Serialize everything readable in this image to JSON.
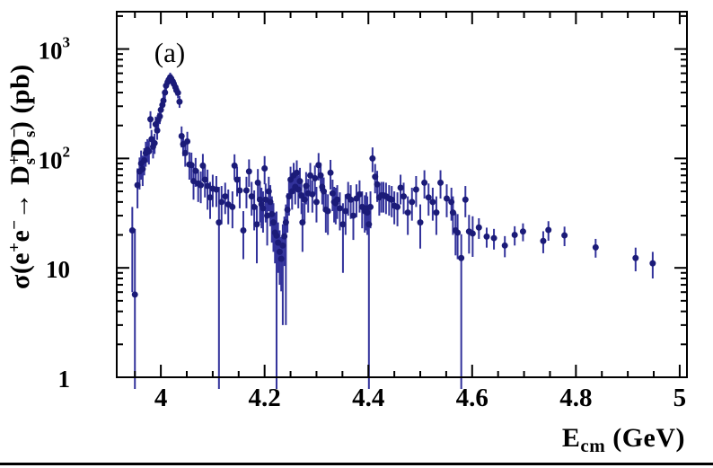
{
  "page": {
    "background": "#ffffff"
  },
  "chart_data": {
    "type": "scatter",
    "title": "",
    "panel_label": "(a)",
    "legend": null,
    "grid": false,
    "x_axis": {
      "title_parts": [
        {
          "t": "E",
          "s": "n"
        },
        {
          "t": "cm",
          "s": "sub"
        },
        {
          "t": " (GeV)",
          "s": "n"
        }
      ],
      "min": 3.915,
      "max": 5.014,
      "scale": "linear",
      "majors": [
        {
          "v": 4.0,
          "label": "4"
        },
        {
          "v": 4.2,
          "label": "4.2"
        },
        {
          "v": 4.4,
          "label": "4.4"
        },
        {
          "v": 4.6,
          "label": "4.6"
        },
        {
          "v": 4.8,
          "label": "4.8"
        },
        {
          "v": 5.0,
          "label": "5"
        }
      ],
      "minor_step": 0.05
    },
    "y_axis": {
      "title_parts": [
        {
          "t": "σ(e",
          "s": "n"
        },
        {
          "t": "+",
          "s": "sup"
        },
        {
          "t": "e",
          "s": "n"
        },
        {
          "t": "−",
          "s": "sup"
        },
        {
          "t": "→ ",
          "s": "n"
        },
        {
          "t": "D",
          "s": "n"
        },
        {
          "top": "+",
          "bottom": "s",
          "s": "stack"
        },
        {
          "t": "D",
          "s": "n"
        },
        {
          "top": "−",
          "bottom": "s",
          "s": "stack"
        },
        {
          "t": ") (pb)",
          "s": "n"
        }
      ],
      "min": 1,
      "max": 2194,
      "scale": "log",
      "majors": [
        {
          "v": 1,
          "base": "1",
          "exp": ""
        },
        {
          "v": 10,
          "base": "10",
          "exp": ""
        },
        {
          "v": 100,
          "base": "10",
          "exp": "2"
        },
        {
          "v": 1000,
          "base": "10",
          "exp": "3"
        }
      ]
    },
    "colors": {
      "marker": "#1b1b78",
      "error_bar": "#32329b",
      "frame": "#000000",
      "background": "#ffffff"
    },
    "marker": {
      "shape": "circle",
      "radius": 3.5
    },
    "points_format": [
      "E_cm_GeV",
      "sigma_pb",
      "err_lo_pb",
      "err_hi_pb"
    ],
    "points": [
      [
        3.945,
        22,
        16,
        14
      ],
      [
        3.95,
        5.7,
        4.7,
        17
      ],
      [
        3.955,
        57,
        22,
        24
      ],
      [
        3.959,
        76,
        24,
        26
      ],
      [
        3.962,
        90,
        26,
        28
      ],
      [
        3.965,
        80,
        24,
        26
      ],
      [
        3.968,
        96,
        26,
        28
      ],
      [
        3.971,
        112,
        28,
        30
      ],
      [
        3.974,
        120,
        28,
        30
      ],
      [
        3.977,
        116,
        28,
        30
      ],
      [
        3.98,
        228,
        40,
        42
      ],
      [
        3.982,
        150,
        30,
        32
      ],
      [
        3.985,
        128,
        28,
        30
      ],
      [
        3.988,
        138,
        28,
        30
      ],
      [
        3.99,
        205,
        35,
        36
      ],
      [
        3.993,
        180,
        32,
        34
      ],
      [
        3.995,
        225,
        35,
        36
      ],
      [
        3.998,
        242,
        36,
        38
      ],
      [
        4.0,
        278,
        38,
        40
      ],
      [
        4.003,
        308,
        40,
        42
      ],
      [
        4.005,
        338,
        42,
        44
      ],
      [
        4.008,
        400,
        45,
        47
      ],
      [
        4.01,
        462,
        48,
        50
      ],
      [
        4.013,
        498,
        50,
        52
      ],
      [
        4.015,
        522,
        52,
        54
      ],
      [
        4.018,
        552,
        54,
        56
      ],
      [
        4.02,
        535,
        52,
        54
      ],
      [
        4.023,
        505,
        50,
        52
      ],
      [
        4.025,
        480,
        48,
        50
      ],
      [
        4.028,
        448,
        46,
        48
      ],
      [
        4.03,
        420,
        45,
        47
      ],
      [
        4.033,
        398,
        44,
        46
      ],
      [
        4.036,
        330,
        40,
        42
      ],
      [
        4.04,
        160,
        34,
        36
      ],
      [
        4.043,
        135,
        30,
        32
      ],
      [
        4.047,
        112,
        28,
        30
      ],
      [
        4.051,
        143,
        30,
        32
      ],
      [
        4.055,
        88,
        24,
        26
      ],
      [
        4.059,
        87,
        24,
        26
      ],
      [
        4.063,
        62,
        20,
        22
      ],
      [
        4.067,
        77,
        22,
        24
      ],
      [
        4.072,
        59,
        19,
        20
      ],
      [
        4.077,
        57,
        18,
        19
      ],
      [
        4.081,
        86,
        23,
        24
      ],
      [
        4.085,
        64,
        20,
        21
      ],
      [
        4.09,
        56,
        22,
        23
      ],
      [
        4.095,
        44,
        16,
        17
      ],
      [
        4.1,
        53,
        17,
        18
      ],
      [
        4.107,
        52,
        16,
        17
      ],
      [
        4.112,
        26,
        25,
        29
      ],
      [
        4.117,
        40,
        15,
        16
      ],
      [
        4.124,
        45,
        14,
        15
      ],
      [
        4.13,
        38,
        13,
        14
      ],
      [
        4.138,
        36,
        13,
        14
      ],
      [
        4.142,
        86,
        22,
        23
      ],
      [
        4.147,
        64,
        19,
        20
      ],
      [
        4.152,
        51,
        16,
        17
      ],
      [
        4.159,
        22,
        10,
        11
      ],
      [
        4.165,
        51,
        16,
        17
      ],
      [
        4.17,
        76,
        21,
        22
      ],
      [
        4.175,
        45,
        15,
        16
      ],
      [
        4.18,
        36,
        14,
        15
      ],
      [
        4.185,
        25,
        14,
        12
      ],
      [
        4.187,
        60,
        19,
        20
      ],
      [
        4.191,
        42,
        16,
        17
      ],
      [
        4.194,
        38,
        15,
        16
      ],
      [
        4.197,
        35,
        14,
        15
      ],
      [
        4.2,
        81,
        23,
        24
      ],
      [
        4.202,
        42,
        16,
        17
      ],
      [
        4.205,
        30,
        14,
        14
      ],
      [
        4.208,
        50,
        17,
        18
      ],
      [
        4.211,
        40,
        16,
        17
      ],
      [
        4.214,
        31,
        14,
        14
      ],
      [
        4.217,
        26,
        12,
        13
      ],
      [
        4.22,
        21,
        10,
        11
      ],
      [
        4.223,
        19.7,
        18.7,
        13
      ],
      [
        4.226,
        17,
        8,
        9
      ],
      [
        4.229,
        14,
        7,
        8
      ],
      [
        4.232,
        12.1,
        6,
        7
      ],
      [
        4.235,
        16,
        13,
        9
      ],
      [
        4.238,
        19.4,
        9,
        10
      ],
      [
        4.241,
        26,
        23,
        12
      ],
      [
        4.244,
        34,
        13,
        14
      ],
      [
        4.247,
        45,
        15,
        16
      ],
      [
        4.25,
        64,
        19,
        20
      ],
      [
        4.253,
        50,
        16,
        17
      ],
      [
        4.256,
        70,
        20,
        21
      ],
      [
        4.259,
        55,
        17,
        18
      ],
      [
        4.262,
        74,
        21,
        22
      ],
      [
        4.265,
        52,
        17,
        18
      ],
      [
        4.268,
        62,
        19,
        20
      ],
      [
        4.271,
        46,
        15,
        16
      ],
      [
        4.273,
        26,
        12,
        13
      ],
      [
        4.277,
        42,
        15,
        16
      ],
      [
        4.28,
        56,
        18,
        19
      ],
      [
        4.284,
        48,
        16,
        17
      ],
      [
        4.288,
        70,
        20,
        21
      ],
      [
        4.292,
        47,
        15,
        16
      ],
      [
        4.297,
        66,
        19,
        20
      ],
      [
        4.3,
        40,
        14,
        15
      ],
      [
        4.304,
        87,
        24,
        25
      ],
      [
        4.308,
        70,
        20,
        21
      ],
      [
        4.311,
        55,
        17,
        18
      ],
      [
        4.314,
        50,
        16,
        17
      ],
      [
        4.318,
        34,
        13,
        14
      ],
      [
        4.322,
        33,
        13,
        14
      ],
      [
        4.327,
        74,
        22,
        23
      ],
      [
        4.331,
        48,
        15,
        16
      ],
      [
        4.334,
        40,
        14,
        15
      ],
      [
        4.337,
        39,
        14,
        15
      ],
      [
        4.34,
        42,
        14,
        15
      ],
      [
        4.345,
        35,
        13,
        14
      ],
      [
        4.351,
        25,
        16,
        14
      ],
      [
        4.356,
        33,
        13,
        14
      ],
      [
        4.361,
        45,
        15,
        16
      ],
      [
        4.366,
        42,
        14,
        15
      ],
      [
        4.371,
        30,
        12,
        13
      ],
      [
        4.377,
        43,
        14,
        15
      ],
      [
        4.383,
        47,
        15,
        16
      ],
      [
        4.388,
        36,
        13,
        14
      ],
      [
        4.393,
        33,
        12,
        13
      ],
      [
        4.396,
        35,
        13,
        14
      ],
      [
        4.398,
        32,
        12,
        13
      ],
      [
        4.401,
        25,
        24,
        13
      ],
      [
        4.404,
        36,
        13,
        14
      ],
      [
        4.408,
        100,
        25,
        26
      ],
      [
        4.413,
        68,
        20,
        21
      ],
      [
        4.417,
        58,
        18,
        19
      ],
      [
        4.421,
        44,
        14,
        15
      ],
      [
        4.425,
        46,
        14,
        15
      ],
      [
        4.429,
        46,
        14,
        15
      ],
      [
        4.434,
        45,
        14,
        15
      ],
      [
        4.44,
        43,
        13,
        14
      ],
      [
        4.445,
        42,
        13,
        14
      ],
      [
        4.45,
        37,
        12,
        13
      ],
      [
        4.456,
        36,
        12,
        13
      ],
      [
        4.462,
        54,
        16,
        17
      ],
      [
        4.468,
        45,
        14,
        15
      ],
      [
        4.476,
        32,
        12,
        13
      ],
      [
        4.484,
        40,
        13,
        14
      ],
      [
        4.492,
        52,
        16,
        17
      ],
      [
        4.5,
        26,
        11,
        12
      ],
      [
        4.508,
        60,
        17,
        18
      ],
      [
        4.516,
        44,
        14,
        15
      ],
      [
        4.524,
        40,
        13,
        14
      ],
      [
        4.531,
        32,
        12,
        13
      ],
      [
        4.539,
        60,
        17,
        18
      ],
      [
        4.551,
        43,
        14,
        15
      ],
      [
        4.56,
        40,
        13,
        14
      ],
      [
        4.563,
        32,
        12,
        13
      ],
      [
        4.568,
        22,
        9,
        10
      ],
      [
        4.572,
        21,
        9,
        10
      ],
      [
        4.579,
        12.3,
        11.3,
        8
      ],
      [
        4.587,
        42,
        13,
        14
      ],
      [
        4.594,
        21.5,
        8,
        9
      ],
      [
        4.601,
        20.6,
        8,
        9
      ],
      [
        4.613,
        23.4,
        5,
        5
      ],
      [
        4.628,
        19.3,
        4,
        4
      ],
      [
        4.642,
        18.7,
        4,
        4
      ],
      [
        4.663,
        16,
        3.5,
        3.5
      ],
      [
        4.682,
        20,
        4,
        4
      ],
      [
        4.698,
        21.5,
        4,
        4
      ],
      [
        4.737,
        17.6,
        4,
        4
      ],
      [
        4.747,
        22.2,
        4.5,
        4.5
      ],
      [
        4.778,
        19.8,
        4,
        4
      ],
      [
        4.838,
        15.4,
        3,
        3
      ],
      [
        4.915,
        12.3,
        3,
        3
      ],
      [
        4.948,
        11,
        3,
        3
      ]
    ]
  }
}
